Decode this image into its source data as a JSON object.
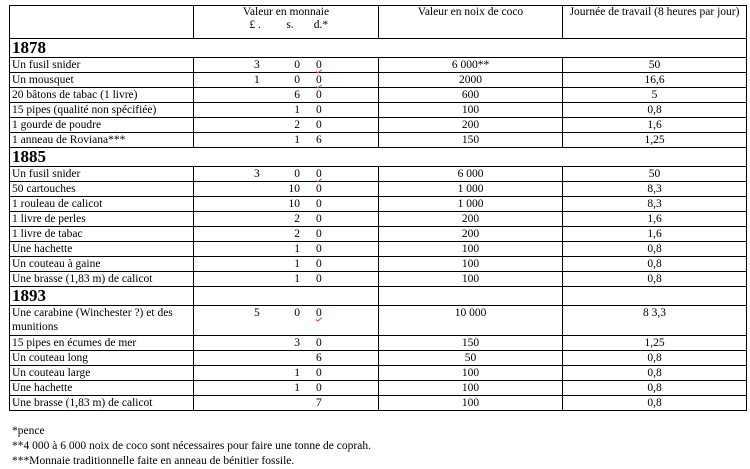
{
  "header": {
    "col_item": "",
    "col_money": "Valeur en monnaie",
    "money_units": [
      "£ .",
      "s.",
      "d.*"
    ],
    "col_coco": "Valeur en noix de coco",
    "col_work": "Journée de travail (8 heures par jour)"
  },
  "sections": [
    {
      "year": "1878",
      "rows": [
        {
          "item": "Un fusil snider",
          "l": "3",
          "s": "0",
          "d": "0",
          "coco": "6 000**",
          "work": "50"
        },
        {
          "item": "Un mousquet",
          "l": "1",
          "s": "0",
          "d": "0",
          "coco": "2000",
          "work": "16,6"
        },
        {
          "item": "20 bâtons de tabac (1 livre)",
          "l": "",
          "s": "6",
          "d": "0",
          "coco": "600",
          "work": "5"
        },
        {
          "item": "15 pipes (qualité non spécifiée)",
          "l": "",
          "s": "1",
          "d": "0",
          "coco": "100",
          "work": "0,8"
        },
        {
          "item": "1 gourde de poudre",
          "l": "",
          "s": "2",
          "d": "0",
          "coco": "200",
          "work": "1,6"
        },
        {
          "item": "1 anneau de Roviana***",
          "l": "",
          "s": "1",
          "d": "6",
          "coco": "150",
          "work": "1,25"
        }
      ]
    },
    {
      "year": "1885",
      "rows": [
        {
          "item": "Un fusil snider",
          "l": "3",
          "s": "0",
          "d": "0",
          "coco": "6 000",
          "work": "50"
        },
        {
          "item": "50 cartouches",
          "l": "",
          "s": "10",
          "d": "0",
          "coco": "1 000",
          "work": "8,3"
        },
        {
          "item": "1 rouleau de calicot",
          "l": "",
          "s": "10",
          "d": "0",
          "coco": "1 000",
          "work": "8,3"
        },
        {
          "item": "1 livre de perles",
          "l": "",
          "s": "2",
          "d": "0",
          "coco": "200",
          "work": "1,6"
        },
        {
          "item": "1 livre de tabac",
          "l": "",
          "s": "2",
          "d": "0",
          "coco": "200",
          "work": "1,6"
        },
        {
          "item": "Une hachette",
          "l": "",
          "s": "1",
          "d": "0",
          "coco": "100",
          "work": "0,8"
        },
        {
          "item": "Un couteau à gaine",
          "l": "",
          "s": "1",
          "d": "0",
          "coco": "100",
          "work": "0,8"
        },
        {
          "item": "Une brasse (1,83 m) de calicot",
          "l": "",
          "s": "1",
          "d": "0",
          "coco": "100",
          "work": "0,8"
        }
      ]
    },
    {
      "year": "1893",
      "rows": [
        {
          "item": "Une carabine (Winchester ?) et des munitions",
          "l": "5",
          "s": "0",
          "d": "0",
          "coco": "10 000",
          "work": "8 3,3"
        },
        {
          "item": "15  pipes en écumes de mer",
          "l": "",
          "s": "3",
          "d": "0",
          "coco": "150",
          "work": "1,25"
        },
        {
          "item": "Un couteau long",
          "l": "",
          "s": "",
          "d": "6",
          "coco": "50",
          "work": "0,8"
        },
        {
          "item": "Un couteau large",
          "l": "",
          "s": "1",
          "d": "0",
          "coco": "100",
          "work": "0,8"
        },
        {
          "item": "Une hachette",
          "l": "",
          "s": "1",
          "d": "0",
          "coco": "100",
          "work": "0,8"
        },
        {
          "item": "Une brasse (1,83 m) de calicot",
          "l": "",
          "s": "",
          "d": "7",
          "coco": "100",
          "work": "0,8"
        }
      ]
    }
  ],
  "footnotes": [
    "*pence",
    "**4 000 à 6 000 noix de coco sont nécessaires pour faire une tonne de coprah.",
    "***Monnaie traditionnelle faite en anneau de bénitier fossile."
  ]
}
